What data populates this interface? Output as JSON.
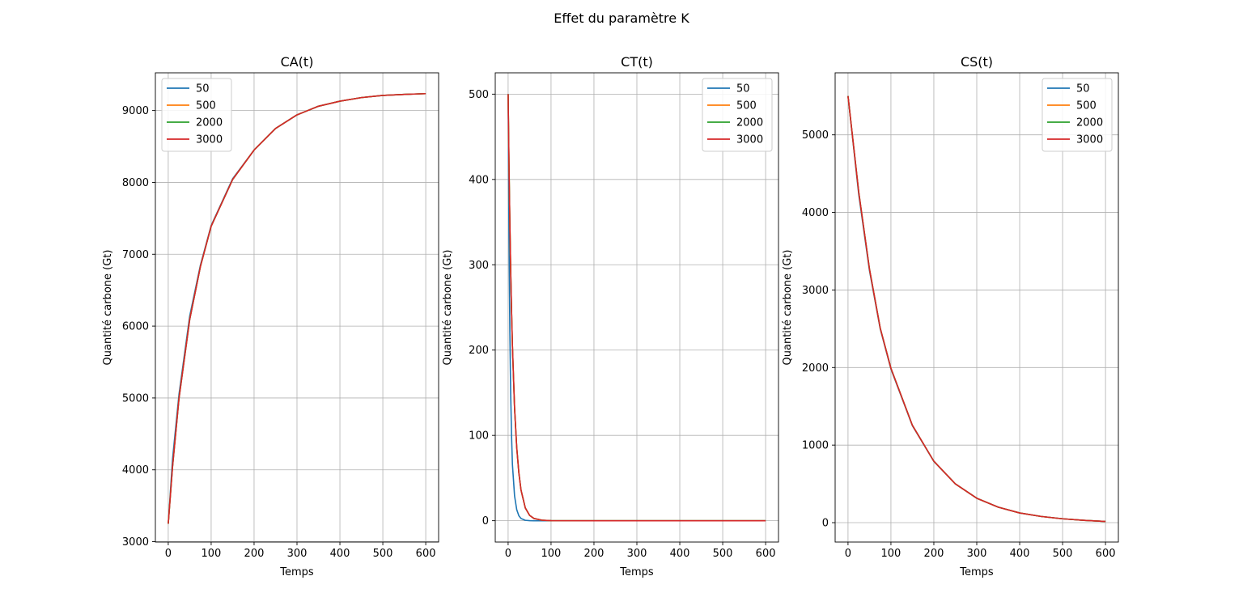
{
  "figure": {
    "title": "Effet du paramètre K"
  },
  "colors": {
    "series": [
      "#1f77b4",
      "#ff7f0e",
      "#2ca02c",
      "#d62728"
    ],
    "grid": "#b0b0b0"
  },
  "chart_data": [
    {
      "type": "line",
      "title": "CA(t)",
      "xlabel": "Temps",
      "ylabel": "Quantité carbone (Gt)",
      "xlim": [
        -30,
        630
      ],
      "ylim": [
        2995,
        9525
      ],
      "xticks": [
        0,
        100,
        200,
        300,
        400,
        500,
        600
      ],
      "yticks": [
        3000,
        4000,
        5000,
        6000,
        7000,
        8000,
        9000
      ],
      "grid": true,
      "legend_position": "upper left",
      "x": [
        0,
        10,
        25,
        50,
        75,
        100,
        150,
        200,
        250,
        300,
        350,
        400,
        450,
        500,
        550,
        600
      ],
      "series": [
        {
          "name": "50",
          "values": [
            3250,
            4150,
            5050,
            6140,
            6850,
            7400,
            8050,
            8450,
            8750,
            8940,
            9060,
            9130,
            9180,
            9210,
            9225,
            9235
          ]
        },
        {
          "name": "500",
          "values": [
            3250,
            4050,
            5000,
            6100,
            6830,
            7390,
            8040,
            8450,
            8750,
            8940,
            9060,
            9130,
            9180,
            9210,
            9225,
            9235
          ]
        },
        {
          "name": "2000",
          "values": [
            3250,
            4040,
            4990,
            6090,
            6830,
            7390,
            8040,
            8450,
            8750,
            8940,
            9060,
            9130,
            9180,
            9210,
            9225,
            9235
          ]
        },
        {
          "name": "3000",
          "values": [
            3250,
            4040,
            4990,
            6090,
            6830,
            7390,
            8040,
            8450,
            8750,
            8940,
            9060,
            9130,
            9180,
            9210,
            9225,
            9235
          ]
        }
      ]
    },
    {
      "type": "line",
      "title": "CT(t)",
      "xlabel": "Temps",
      "ylabel": "Quantité carbone (Gt)",
      "xlim": [
        -30,
        630
      ],
      "ylim": [
        -25,
        525
      ],
      "xticks": [
        0,
        100,
        200,
        300,
        400,
        500,
        600
      ],
      "yticks": [
        0,
        100,
        200,
        300,
        400,
        500
      ],
      "grid": true,
      "legend_position": "upper right",
      "x": [
        0,
        2,
        4,
        6,
        8,
        10,
        15,
        20,
        25,
        30,
        40,
        50,
        60,
        80,
        100,
        200,
        300,
        400,
        500,
        600
      ],
      "series": [
        {
          "name": "50",
          "values": [
            500,
            333,
            222,
            148,
            99,
            66,
            29,
            13,
            5.8,
            2.6,
            0.5,
            0.1,
            0,
            0,
            0,
            0,
            0,
            0,
            0,
            0
          ]
        },
        {
          "name": "500",
          "values": [
            500,
            418,
            350,
            292,
            245,
            205,
            132,
            86,
            56,
            36,
            15,
            6.3,
            2.7,
            0.5,
            0.1,
            0,
            0,
            0,
            0,
            0
          ]
        },
        {
          "name": "2000",
          "values": [
            500,
            418,
            350,
            292,
            245,
            205,
            132,
            86,
            56,
            36,
            15,
            6.3,
            2.7,
            0.5,
            0.1,
            0,
            0,
            0,
            0,
            0
          ]
        },
        {
          "name": "3000",
          "values": [
            500,
            418,
            350,
            292,
            245,
            205,
            132,
            86,
            56,
            36,
            15,
            6.3,
            2.7,
            0.5,
            0.1,
            0,
            0,
            0,
            0,
            0
          ]
        }
      ]
    },
    {
      "type": "line",
      "title": "CS(t)",
      "xlabel": "Temps",
      "ylabel": "Quantité carbone (Gt)",
      "xlim": [
        -30,
        630
      ],
      "ylim": [
        -250,
        5800
      ],
      "xticks": [
        0,
        100,
        200,
        300,
        400,
        500,
        600
      ],
      "yticks": [
        0,
        1000,
        2000,
        3000,
        4000,
        5000
      ],
      "grid": true,
      "legend_position": "upper right",
      "x": [
        0,
        25,
        50,
        75,
        100,
        150,
        200,
        250,
        300,
        350,
        400,
        450,
        500,
        550,
        600
      ],
      "series": [
        {
          "name": "50",
          "values": [
            5500,
            4230,
            3250,
            2500,
            1980,
            1250,
            790,
            500,
            315,
            200,
            125,
            80,
            50,
            30,
            15
          ]
        },
        {
          "name": "500",
          "values": [
            5500,
            4260,
            3270,
            2510,
            1990,
            1255,
            792,
            500,
            315,
            200,
            125,
            80,
            50,
            30,
            15
          ]
        },
        {
          "name": "2000",
          "values": [
            5500,
            4260,
            3270,
            2510,
            1990,
            1255,
            792,
            500,
            315,
            200,
            125,
            80,
            50,
            30,
            15
          ]
        },
        {
          "name": "3000",
          "values": [
            5500,
            4260,
            3270,
            2510,
            1990,
            1255,
            792,
            500,
            315,
            200,
            125,
            80,
            50,
            30,
            15
          ]
        }
      ]
    }
  ]
}
